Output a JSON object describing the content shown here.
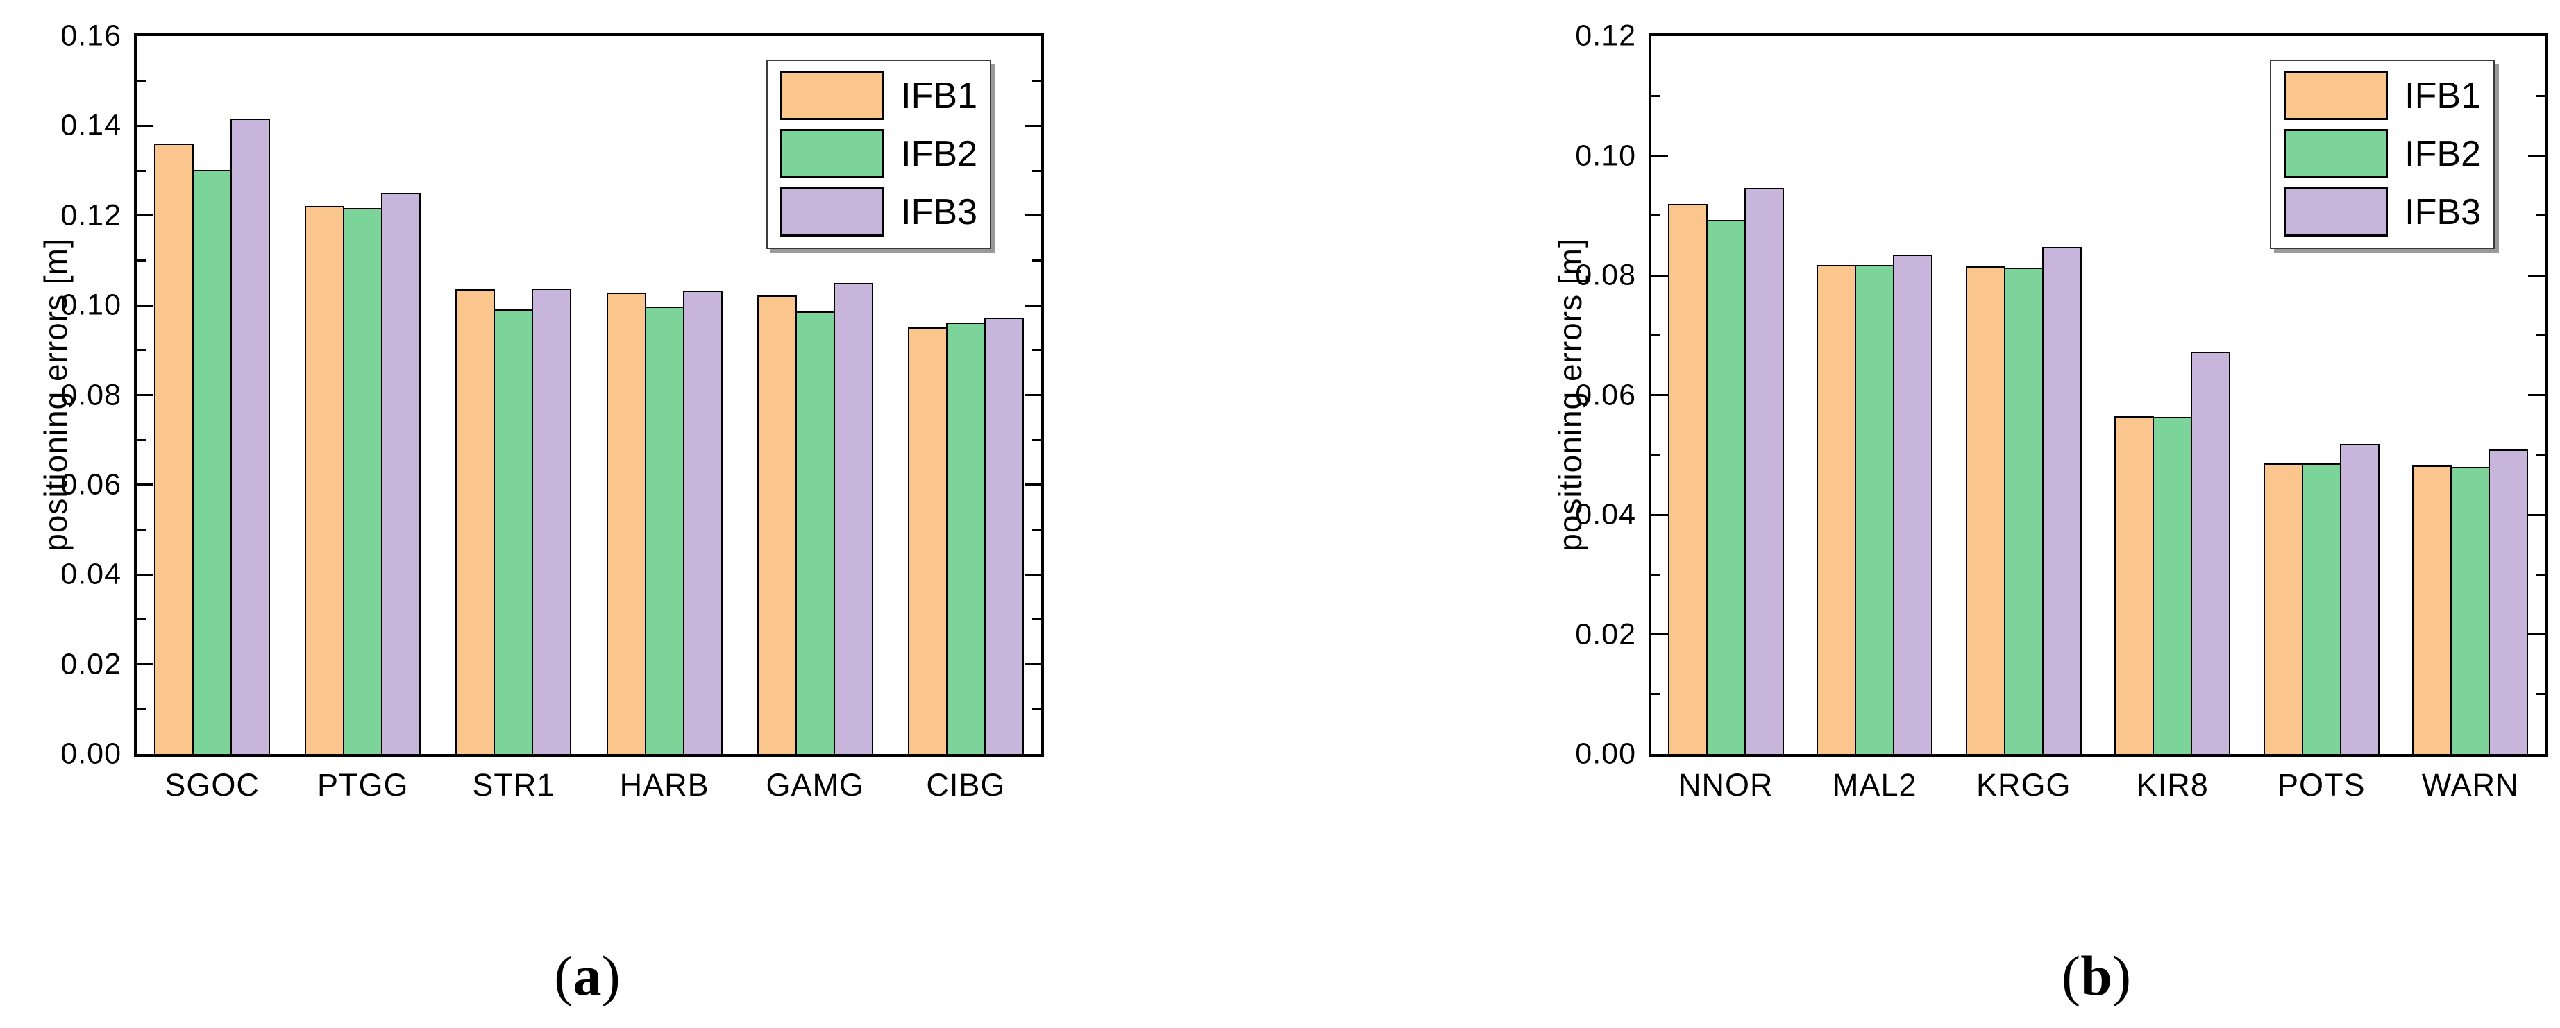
{
  "figure": {
    "background": "#ffffff",
    "caption_open": "(",
    "caption_close": ")"
  },
  "chart_data": [
    {
      "id": "a",
      "type": "bar",
      "caption_letter": "a",
      "ylabel": "positioning errors [m]",
      "ylim": [
        0,
        0.16
      ],
      "ytick_interval": 0.02,
      "minor_tick_interval": 0.01,
      "grid": false,
      "legend_position": "top-right",
      "bar_border_color": "#000000",
      "categories": [
        "SGOC",
        "PTGG",
        "STR1",
        "HARB",
        "GAMG",
        "CIBG"
      ],
      "series": [
        {
          "name": "IFB1",
          "color": "#FBC68E",
          "values": [
            0.1361,
            0.1222,
            0.1036,
            0.1028,
            0.1022,
            0.0951
          ]
        },
        {
          "name": "IFB2",
          "color": "#7DD49B",
          "values": [
            0.1302,
            0.1216,
            0.0991,
            0.0997,
            0.0986,
            0.0961
          ]
        },
        {
          "name": "IFB3",
          "color": "#C8B5DB",
          "values": [
            0.1416,
            0.1251,
            0.1037,
            0.1032,
            0.1049,
            0.0973
          ]
        }
      ]
    },
    {
      "id": "b",
      "type": "bar",
      "caption_letter": "b",
      "ylabel": "positioning errors [m]",
      "ylim": [
        0,
        0.12
      ],
      "ytick_interval": 0.02,
      "minor_tick_interval": 0.01,
      "grid": false,
      "legend_position": "top-right",
      "bar_border_color": "#000000",
      "categories": [
        "NNOR",
        "MAL2",
        "KRGG",
        "KIR8",
        "POTS",
        "WARN"
      ],
      "series": [
        {
          "name": "IFB1",
          "color": "#FBC68E",
          "values": [
            0.092,
            0.0817,
            0.0815,
            0.0565,
            0.0486,
            0.0482
          ]
        },
        {
          "name": "IFB2",
          "color": "#7DD49B",
          "values": [
            0.0893,
            0.0817,
            0.0813,
            0.0564,
            0.0486,
            0.048
          ]
        },
        {
          "name": "IFB3",
          "color": "#C8B5DB",
          "values": [
            0.0946,
            0.0835,
            0.0848,
            0.0672,
            0.0518,
            0.0509
          ]
        }
      ]
    }
  ]
}
